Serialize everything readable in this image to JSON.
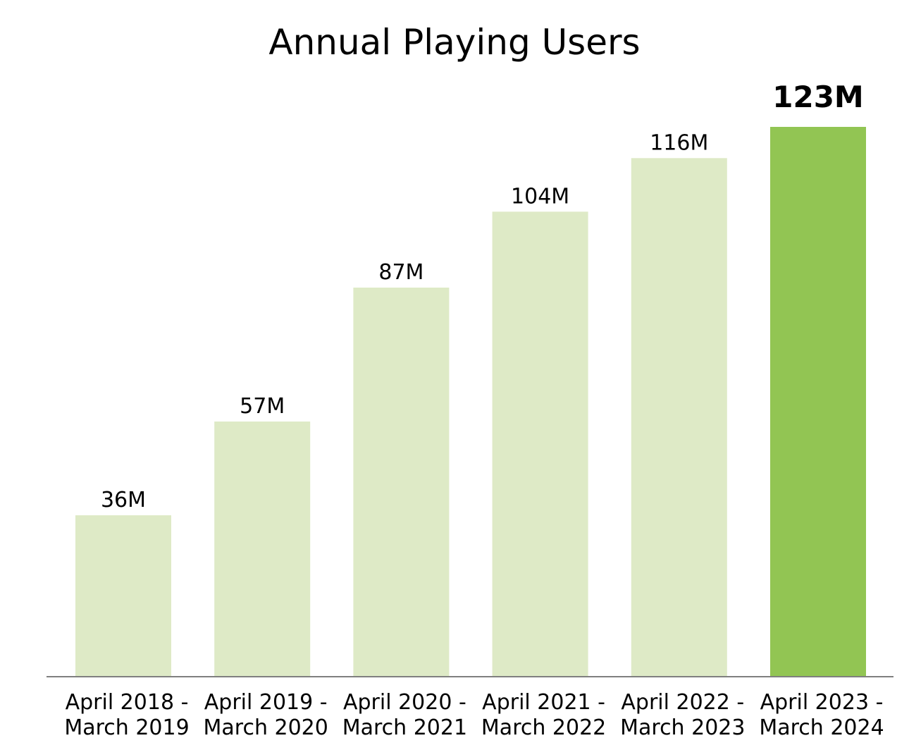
{
  "chart_data": {
    "type": "bar",
    "title": "Annual Playing Users",
    "xlabel": "",
    "ylabel": "",
    "ylim": [
      0,
      123
    ],
    "grid": false,
    "legend": "none",
    "unit": "M",
    "categories": [
      [
        "April 2018 -",
        "March 2019"
      ],
      [
        "April 2019 -",
        "March 2020"
      ],
      [
        "April 2020 -",
        "March 2021"
      ],
      [
        "April 2021 -",
        "March 2022"
      ],
      [
        "April 2022 -",
        "March 2023"
      ],
      [
        "April 2023 -",
        "March 2024"
      ]
    ],
    "values": [
      36,
      57,
      87,
      104,
      116,
      123
    ],
    "data_labels": [
      "36M",
      "57M",
      "87M",
      "104M",
      "116M",
      "123M"
    ],
    "highlight_index": 5,
    "colors": {
      "bar": "#deeac6",
      "highlight_bar": "#92c553",
      "axis": "#555555",
      "text": "#000000"
    }
  }
}
